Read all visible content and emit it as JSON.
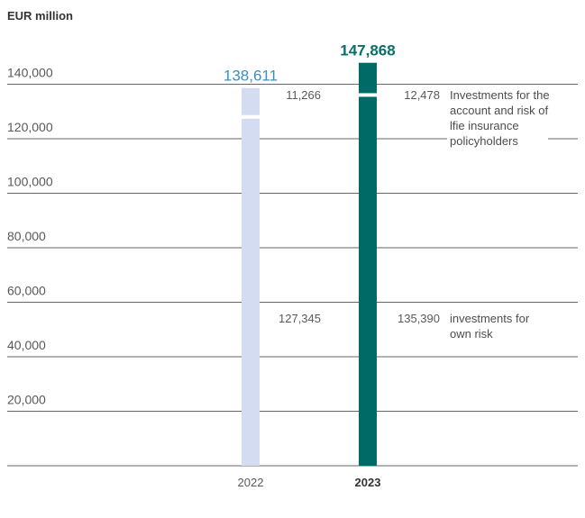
{
  "chart_data": {
    "type": "bar",
    "stacked": true,
    "unit_label": "EUR million",
    "categories": [
      "2022",
      "2023"
    ],
    "highlight_category": "2023",
    "totals": [
      "138,611",
      "147,868"
    ],
    "series": [
      {
        "name": "investments for own risk",
        "values": [
          127345,
          135390
        ],
        "value_labels": [
          "127,345",
          "135,390"
        ],
        "legend_lines": [
          "investments for",
          "own risk"
        ]
      },
      {
        "name": "Investments for the account and risk of lfie insurance policyholders",
        "values": [
          11266,
          12478
        ],
        "value_labels": [
          "11,266",
          "12,478"
        ],
        "legend_lines": [
          "Investments for the",
          "account and risk of",
          "lfie insurance",
          "policyholders"
        ]
      }
    ],
    "colors": {
      "2022": "#d3dcf0",
      "2023": "#006b66",
      "total_2022": "#3a8fc2",
      "total_2023": "#0b6e68",
      "gridline": "#666666"
    },
    "ylim": [
      0,
      140000
    ],
    "yticks": [
      20000,
      40000,
      60000,
      80000,
      100000,
      120000,
      140000
    ],
    "ytick_labels": [
      "20,000",
      "40,000",
      "60,000",
      "80,000",
      "100,000",
      "120,000",
      "140,000"
    ],
    "grid": true
  }
}
